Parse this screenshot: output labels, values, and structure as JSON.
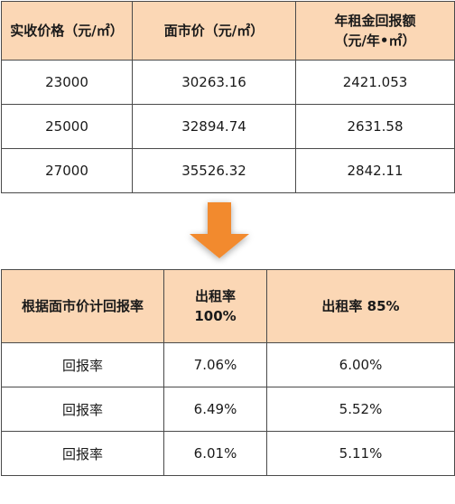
{
  "table_top": {
    "headers": [
      "实收价格（元/㎡）",
      "面市价（元/㎡）",
      "年租金回报额",
      "（元/年•㎡）"
    ],
    "rows": [
      [
        "23000",
        "30263.16",
        "2421.053"
      ],
      [
        "25000",
        "32894.74",
        "2631.58"
      ],
      [
        "27000",
        "35526.32",
        "2842.11"
      ]
    ]
  },
  "arrow": {
    "icon": "down-arrow-icon",
    "color": "#f28a2e"
  },
  "table_bottom": {
    "headers": [
      "根据面市价计回报率",
      "出租率",
      "100%",
      "出租率 85%"
    ],
    "rows": [
      [
        "回报率",
        "7.06%",
        "6.00%"
      ],
      [
        "回报率",
        "6.49%",
        "5.52%"
      ],
      [
        "回报率",
        "6.01%",
        "5.11%"
      ]
    ]
  },
  "colors": {
    "header_bg": "#fbd7b5",
    "border": "#4a4a4a"
  }
}
